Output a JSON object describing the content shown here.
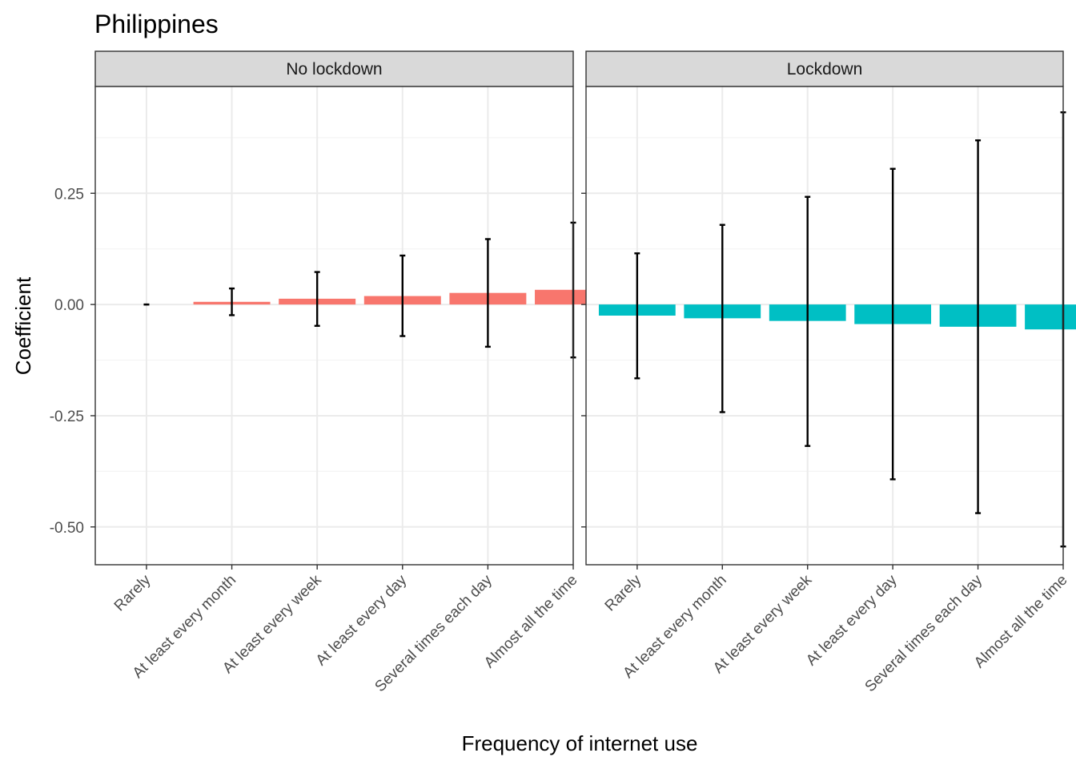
{
  "chart_data": {
    "type": "bar",
    "title": "Philippines",
    "xlabel": "Frequency of internet use",
    "ylabel": "Coefficient",
    "ylim": [
      -0.585,
      0.49
    ],
    "yticks": [
      -0.5,
      -0.25,
      0.0,
      0.25
    ],
    "ytick_labels": [
      "-0.50",
      "-0.25",
      "0.00",
      "0.25"
    ],
    "categories": [
      "Rarely",
      "At least every month",
      "At least every week",
      "At least every day",
      "Several times each day",
      "Almost all the time"
    ],
    "grid": true,
    "legend": "none",
    "panels": [
      {
        "name": "No lockdown",
        "color": "#F8766D",
        "values": [
          0.0,
          0.006,
          0.013,
          0.019,
          0.026,
          0.033
        ],
        "lower": [
          0.0,
          -0.024,
          -0.048,
          -0.071,
          -0.095,
          -0.119
        ],
        "upper": [
          0.0,
          0.036,
          0.073,
          0.11,
          0.147,
          0.184
        ]
      },
      {
        "name": "Lockdown",
        "color": "#00BFC4",
        "values": [
          -0.025,
          -0.031,
          -0.037,
          -0.044,
          -0.05,
          -0.056
        ],
        "lower": [
          -0.166,
          -0.242,
          -0.318,
          -0.393,
          -0.469,
          -0.544
        ],
        "upper": [
          0.115,
          0.179,
          0.242,
          0.305,
          0.369,
          0.432
        ]
      }
    ]
  }
}
